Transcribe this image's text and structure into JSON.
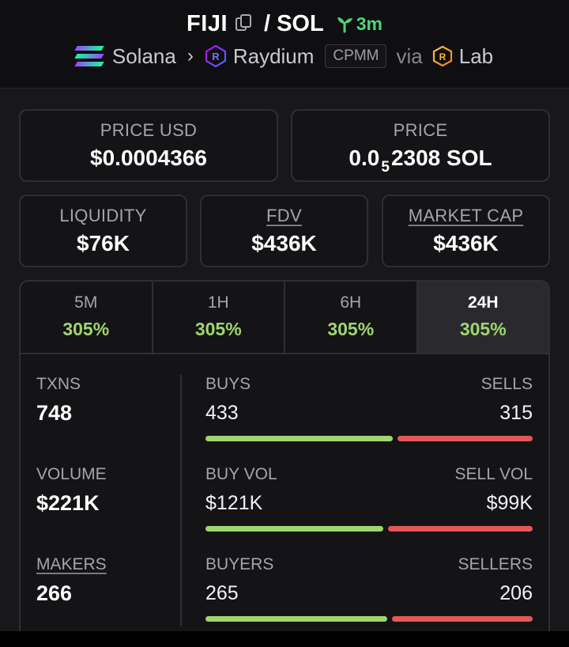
{
  "header": {
    "base_token": "FIJI",
    "separator": "/",
    "quote_token": "SOL",
    "age": "3m",
    "chain": "Solana",
    "dex": "Raydium",
    "pool_type": "CPMM",
    "via": "via",
    "launchpad": "Lab"
  },
  "price_cards": {
    "price_usd": {
      "label": "PRICE USD",
      "value": "$0.0004366"
    },
    "price_native": {
      "label": "PRICE",
      "prefix": "0.0",
      "sub": "5",
      "suffix": "2308 SOL"
    }
  },
  "metric_cards": [
    {
      "label": "LIQUIDITY",
      "value": "$76K"
    },
    {
      "label": "FDV",
      "value": "$436K"
    },
    {
      "label": "MARKET CAP",
      "value": "$436K"
    }
  ],
  "tabs": [
    {
      "label": "5M",
      "value": "305%"
    },
    {
      "label": "1H",
      "value": "305%"
    },
    {
      "label": "6H",
      "value": "305%"
    },
    {
      "label": "24H",
      "value": "305%"
    }
  ],
  "stats": {
    "txns": {
      "label": "TXNS",
      "value": "748"
    },
    "volume": {
      "label": "VOLUME",
      "value": "$221K"
    },
    "makers": {
      "label": "MAKERS",
      "value": "266"
    },
    "buys_sells": {
      "left_label": "BUYS",
      "right_label": "SELLS",
      "left_value": "433",
      "right_value": "315",
      "buy_fraction": 0.579
    },
    "volume_split": {
      "left_label": "BUY VOL",
      "right_label": "SELL VOL",
      "left_value": "$121K",
      "right_value": "$99K",
      "buy_fraction": 0.55
    },
    "buyers_sellers": {
      "left_label": "BUYERS",
      "right_label": "SELLERS",
      "left_value": "265",
      "right_value": "206",
      "buy_fraction": 0.563
    }
  },
  "colors": {
    "accent_green": "#9fd66e",
    "sell_red": "#e45757",
    "age_green": "#4fd37b",
    "background": "#18181b"
  }
}
